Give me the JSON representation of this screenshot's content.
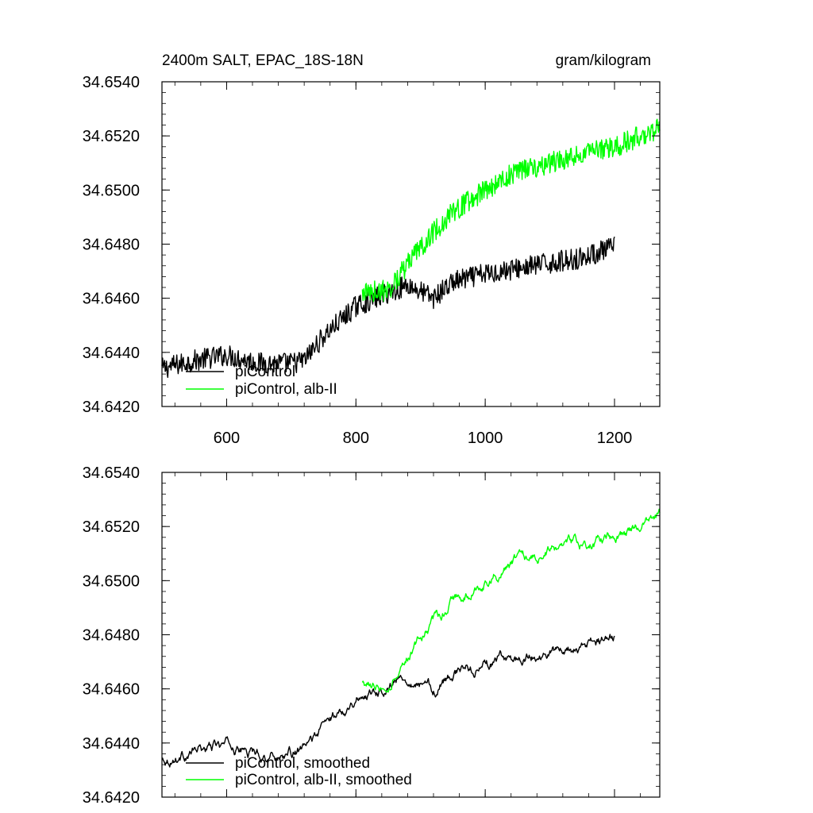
{
  "chart_data": [
    {
      "type": "line",
      "title": "2400m SALT, EPAC_18S-18N",
      "units": "gram/kilogram",
      "xlim": [
        500,
        1270
      ],
      "ylim": [
        34.642,
        34.654
      ],
      "xticks": [
        "600",
        "800",
        "1000",
        "1200"
      ],
      "yticks": [
        "34.6420",
        "34.6440",
        "34.6460",
        "34.6480",
        "34.6500",
        "34.6520",
        "34.6540"
      ],
      "grid": false,
      "legend_position": "bottom-left",
      "series": [
        {
          "name": "piControl",
          "color": "#000000",
          "x_start": 500,
          "x_end": 1200,
          "anchors_x": [
            500,
            550,
            600,
            650,
            700,
            720,
            750,
            800,
            850,
            880,
            920,
            950,
            1000,
            1050,
            1100,
            1150,
            1200
          ],
          "anchors_y": [
            34.6434,
            34.6437,
            34.6439,
            34.6436,
            34.6436,
            34.6437,
            34.6446,
            34.6457,
            34.6462,
            34.6465,
            34.646,
            34.6466,
            34.6469,
            34.6471,
            34.6473,
            34.6475,
            34.6479
          ],
          "noise": 0.0004
        },
        {
          "name": "piControl, alb-II",
          "color": "#00ff00",
          "x_start": 810,
          "x_end": 1270,
          "anchors_x": [
            810,
            850,
            900,
            950,
            1000,
            1050,
            1100,
            1150,
            1200,
            1270
          ],
          "anchors_y": [
            34.6462,
            34.6463,
            34.6479,
            34.6492,
            34.65,
            34.6507,
            34.651,
            34.6513,
            34.6516,
            34.6523
          ],
          "noise": 0.0004
        }
      ]
    },
    {
      "type": "line",
      "xlim": [
        500,
        1270
      ],
      "ylim": [
        34.642,
        34.654
      ],
      "yticks": [
        "34.6420",
        "34.6440",
        "34.6460",
        "34.6480",
        "34.6500",
        "34.6520",
        "34.6540"
      ],
      "grid": false,
      "legend_position": "bottom-left",
      "series": [
        {
          "name": "piControl, smoothed",
          "color": "#000000",
          "x_start": 500,
          "x_end": 1200,
          "anchors_x": [
            500,
            550,
            600,
            650,
            700,
            720,
            750,
            800,
            850,
            880,
            920,
            950,
            1000,
            1050,
            1100,
            1150,
            1200
          ],
          "anchors_y": [
            34.6434,
            34.6437,
            34.6439,
            34.6436,
            34.6436,
            34.6437,
            34.6446,
            34.6457,
            34.6462,
            34.6465,
            34.646,
            34.6466,
            34.6469,
            34.6471,
            34.6473,
            34.6475,
            34.6479
          ],
          "noise": 0.00012
        },
        {
          "name": "piControl, alb-II, smoothed",
          "color": "#00ff00",
          "x_start": 810,
          "x_end": 1270,
          "anchors_x": [
            810,
            850,
            900,
            950,
            1000,
            1050,
            1100,
            1150,
            1200,
            1270
          ],
          "anchors_y": [
            34.6462,
            34.6463,
            34.6479,
            34.6492,
            34.65,
            34.6507,
            34.651,
            34.6513,
            34.6516,
            34.6523
          ],
          "noise": 0.00012
        }
      ]
    }
  ]
}
